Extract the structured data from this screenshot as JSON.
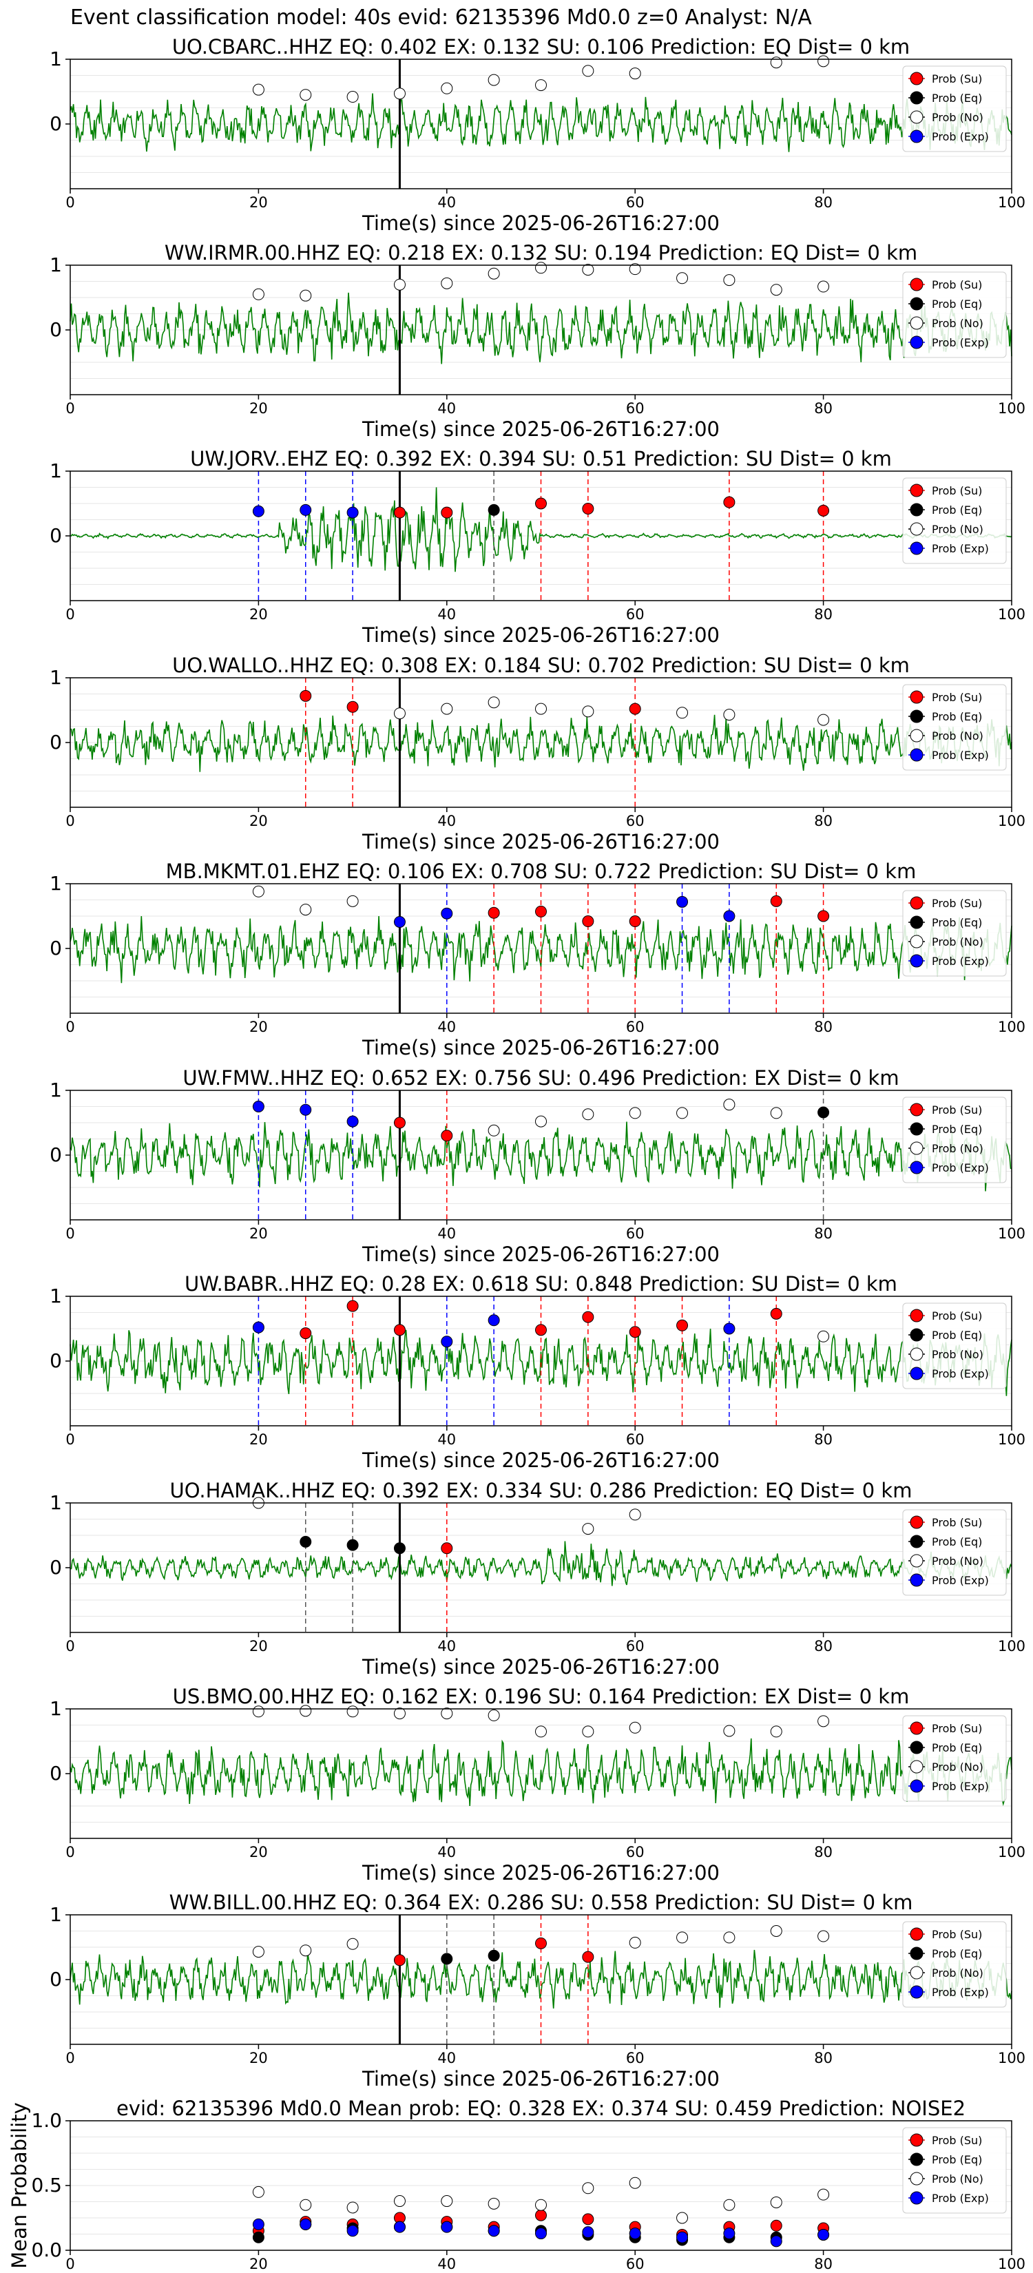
{
  "figure": {
    "title": "Event classification model: 40s evid: 62135396 Md0.0 z=0 Analyst: N/A",
    "xlabel": "Time(s) since 2025-06-26T16:27:00"
  },
  "legend": [
    "Prob (Su)",
    "Prob (Eq)",
    "Prob (No)",
    "Prob (Exp)"
  ],
  "colors": {
    "su": "#ff0000",
    "eq": "#000000",
    "no": "#ffffff",
    "exp": "#0000ff",
    "trace": "#008000"
  },
  "chart_data": [
    {
      "type": "line",
      "title": "UO.CBARC..HHZ   EQ: 0.402  EX: 0.132  SU: 0.106   Prediction: EQ    Dist= 0 km",
      "xlim": [
        0,
        100
      ],
      "ylim": [
        -1,
        1
      ],
      "xticks": [
        0,
        20,
        40,
        60,
        80,
        100
      ],
      "yticks": [
        0,
        1
      ],
      "origin_line": 35,
      "noise": "broad",
      "markers": [
        [
          20,
          "no",
          0.53
        ],
        [
          25,
          "no",
          0.45
        ],
        [
          30,
          "no",
          0.42
        ],
        [
          35,
          "no",
          0.47
        ],
        [
          40,
          "no",
          0.55
        ],
        [
          45,
          "no",
          0.68
        ],
        [
          50,
          "no",
          0.6
        ],
        [
          55,
          "no",
          0.82
        ],
        [
          60,
          "no",
          0.78
        ],
        [
          75,
          "no",
          0.95
        ],
        [
          80,
          "no",
          0.97
        ]
      ],
      "dashed": []
    },
    {
      "type": "line",
      "title": "WW.IRMR.00.HHZ   EQ: 0.218  EX: 0.132  SU: 0.194   Prediction: EQ    Dist= 0 km",
      "xlim": [
        0,
        100
      ],
      "ylim": [
        -1,
        1
      ],
      "xticks": [
        0,
        20,
        40,
        60,
        80,
        100
      ],
      "yticks": [
        0,
        1
      ],
      "origin_line": 35,
      "noise": "wave",
      "markers": [
        [
          20,
          "no",
          0.55
        ],
        [
          25,
          "no",
          0.53
        ],
        [
          35,
          "no",
          0.7
        ],
        [
          40,
          "no",
          0.72
        ],
        [
          45,
          "no",
          0.87
        ],
        [
          50,
          "no",
          0.96
        ],
        [
          55,
          "no",
          0.93
        ],
        [
          60,
          "no",
          0.94
        ],
        [
          65,
          "no",
          0.8
        ],
        [
          70,
          "no",
          0.77
        ],
        [
          75,
          "no",
          0.62
        ],
        [
          80,
          "no",
          0.67
        ]
      ],
      "dashed": []
    },
    {
      "type": "line",
      "title": "UW.JORV..EHZ   EQ: 0.392  EX: 0.394  SU: 0.51   Prediction: SU    Dist= 0 km",
      "xlim": [
        0,
        100
      ],
      "ylim": [
        -1,
        1
      ],
      "xticks": [
        0,
        20,
        40,
        60,
        80,
        100
      ],
      "yticks": [
        0,
        1
      ],
      "origin_line": 35,
      "noise": "burst",
      "markers": [
        [
          20,
          "exp",
          0.38
        ],
        [
          25,
          "exp",
          0.4
        ],
        [
          30,
          "exp",
          0.36
        ],
        [
          35,
          "su",
          0.36
        ],
        [
          40,
          "su",
          0.36
        ],
        [
          45,
          "eq",
          0.4
        ],
        [
          50,
          "su",
          0.5
        ],
        [
          55,
          "su",
          0.42
        ],
        [
          70,
          "su",
          0.52
        ],
        [
          80,
          "su",
          0.39
        ]
      ],
      "dashed": [
        [
          20,
          "exp"
        ],
        [
          25,
          "exp"
        ],
        [
          30,
          "exp"
        ],
        [
          45,
          "eq"
        ],
        [
          50,
          "su"
        ],
        [
          55,
          "su"
        ],
        [
          70,
          "su"
        ],
        [
          80,
          "su"
        ]
      ]
    },
    {
      "type": "line",
      "title": "UO.WALLO..HHZ   EQ: 0.308  EX: 0.184  SU: 0.702   Prediction: SU    Dist= 0 km",
      "xlim": [
        0,
        100
      ],
      "ylim": [
        -1,
        1
      ],
      "xticks": [
        0,
        20,
        40,
        60,
        80,
        100
      ],
      "yticks": [
        0,
        1
      ],
      "origin_line": 35,
      "noise": "broad",
      "markers": [
        [
          25,
          "su",
          0.72
        ],
        [
          30,
          "su",
          0.55
        ],
        [
          35,
          "no",
          0.45
        ],
        [
          40,
          "no",
          0.52
        ],
        [
          45,
          "no",
          0.62
        ],
        [
          50,
          "no",
          0.52
        ],
        [
          55,
          "no",
          0.48
        ],
        [
          60,
          "su",
          0.52
        ],
        [
          65,
          "no",
          0.46
        ],
        [
          70,
          "no",
          0.43
        ],
        [
          80,
          "no",
          0.35
        ]
      ],
      "dashed": [
        [
          25,
          "su"
        ],
        [
          30,
          "su"
        ],
        [
          60,
          "su"
        ]
      ]
    },
    {
      "type": "line",
      "title": "MB.MKMT.01.EHZ   EQ: 0.106  EX: 0.708  SU: 0.722   Prediction: SU    Dist= 0 km",
      "xlim": [
        0,
        100
      ],
      "ylim": [
        -1,
        1
      ],
      "xticks": [
        0,
        20,
        40,
        60,
        80,
        100
      ],
      "yticks": [
        0,
        1
      ],
      "origin_line": 35,
      "noise": "wave",
      "markers": [
        [
          20,
          "no",
          0.88
        ],
        [
          25,
          "no",
          0.6
        ],
        [
          30,
          "no",
          0.73
        ],
        [
          35,
          "exp",
          0.41
        ],
        [
          40,
          "exp",
          0.54
        ],
        [
          45,
          "su",
          0.55
        ],
        [
          50,
          "su",
          0.57
        ],
        [
          55,
          "su",
          0.42
        ],
        [
          60,
          "su",
          0.42
        ],
        [
          65,
          "exp",
          0.72
        ],
        [
          70,
          "exp",
          0.5
        ],
        [
          75,
          "su",
          0.73
        ],
        [
          80,
          "su",
          0.5
        ]
      ],
      "dashed": [
        [
          40,
          "exp"
        ],
        [
          45,
          "su"
        ],
        [
          50,
          "su"
        ],
        [
          55,
          "su"
        ],
        [
          60,
          "su"
        ],
        [
          65,
          "exp"
        ],
        [
          70,
          "exp"
        ],
        [
          75,
          "su"
        ],
        [
          80,
          "su"
        ]
      ]
    },
    {
      "type": "line",
      "title": "UW.FMW..HHZ   EQ: 0.652  EX: 0.756  SU: 0.496   Prediction: EX    Dist= 0 km",
      "xlim": [
        0,
        100
      ],
      "ylim": [
        -1,
        1
      ],
      "xticks": [
        0,
        20,
        40,
        60,
        80,
        100
      ],
      "yticks": [
        0,
        1
      ],
      "origin_line": 35,
      "noise": "wave",
      "markers": [
        [
          20,
          "exp",
          0.75
        ],
        [
          25,
          "exp",
          0.7
        ],
        [
          30,
          "exp",
          0.52
        ],
        [
          35,
          "su",
          0.5
        ],
        [
          40,
          "su",
          0.3
        ],
        [
          45,
          "no",
          0.38
        ],
        [
          50,
          "no",
          0.52
        ],
        [
          55,
          "no",
          0.63
        ],
        [
          60,
          "no",
          0.65
        ],
        [
          65,
          "no",
          0.65
        ],
        [
          70,
          "no",
          0.78
        ],
        [
          75,
          "no",
          0.65
        ],
        [
          80,
          "eq",
          0.66
        ]
      ],
      "dashed": [
        [
          20,
          "exp"
        ],
        [
          25,
          "exp"
        ],
        [
          30,
          "exp"
        ],
        [
          40,
          "su"
        ],
        [
          80,
          "eq"
        ]
      ]
    },
    {
      "type": "line",
      "title": "UW.BABR..HHZ   EQ: 0.28  EX: 0.618  SU: 0.848   Prediction: SU    Dist= 0 km",
      "xlim": [
        0,
        100
      ],
      "ylim": [
        -1,
        1
      ],
      "xticks": [
        0,
        20,
        40,
        60,
        80,
        100
      ],
      "yticks": [
        0,
        1
      ],
      "origin_line": 35,
      "noise": "wave",
      "markers": [
        [
          20,
          "exp",
          0.52
        ],
        [
          25,
          "su",
          0.43
        ],
        [
          30,
          "su",
          0.85
        ],
        [
          35,
          "su",
          0.48
        ],
        [
          40,
          "exp",
          0.3
        ],
        [
          45,
          "exp",
          0.63
        ],
        [
          50,
          "su",
          0.48
        ],
        [
          55,
          "su",
          0.68
        ],
        [
          60,
          "su",
          0.45
        ],
        [
          65,
          "su",
          0.55
        ],
        [
          70,
          "exp",
          0.5
        ],
        [
          75,
          "su",
          0.73
        ],
        [
          80,
          "no",
          0.38
        ]
      ],
      "dashed": [
        [
          20,
          "exp"
        ],
        [
          25,
          "su"
        ],
        [
          30,
          "su"
        ],
        [
          40,
          "exp"
        ],
        [
          45,
          "exp"
        ],
        [
          50,
          "su"
        ],
        [
          55,
          "su"
        ],
        [
          60,
          "su"
        ],
        [
          65,
          "su"
        ],
        [
          70,
          "exp"
        ],
        [
          75,
          "su"
        ]
      ]
    },
    {
      "type": "line",
      "title": "UO.HAMAK..HHZ   EQ: 0.392  EX: 0.334  SU: 0.286   Prediction: EQ    Dist= 0 km",
      "xlim": [
        0,
        100
      ],
      "ylim": [
        -1,
        1
      ],
      "xticks": [
        0,
        20,
        40,
        60,
        80,
        100
      ],
      "yticks": [
        0,
        1
      ],
      "origin_line": 35,
      "noise": "quiet",
      "markers": [
        [
          20,
          "no",
          1.0
        ],
        [
          25,
          "eq",
          0.4
        ],
        [
          30,
          "eq",
          0.35
        ],
        [
          35,
          "eq",
          0.3
        ],
        [
          40,
          "su",
          0.3
        ],
        [
          55,
          "no",
          0.6
        ],
        [
          60,
          "no",
          0.82
        ]
      ],
      "dashed": [
        [
          25,
          "eq"
        ],
        [
          30,
          "eq"
        ],
        [
          40,
          "su"
        ]
      ]
    },
    {
      "type": "line",
      "title": "US.BMO.00.HHZ   EQ: 0.162  EX: 0.196  SU: 0.164   Prediction: EX    Dist= 0 km",
      "xlim": [
        0,
        100
      ],
      "ylim": [
        -1,
        1
      ],
      "xticks": [
        0,
        20,
        40,
        60,
        80,
        100
      ],
      "yticks": [
        0,
        1
      ],
      "origin_line": 0,
      "noise": "wave",
      "markers": [
        [
          20,
          "no",
          0.96
        ],
        [
          25,
          "no",
          0.97
        ],
        [
          30,
          "no",
          0.96
        ],
        [
          35,
          "no",
          0.93
        ],
        [
          40,
          "no",
          0.93
        ],
        [
          45,
          "no",
          0.9
        ],
        [
          50,
          "no",
          0.65
        ],
        [
          55,
          "no",
          0.65
        ],
        [
          60,
          "no",
          0.71
        ],
        [
          70,
          "no",
          0.66
        ],
        [
          75,
          "no",
          0.65
        ],
        [
          80,
          "no",
          0.81
        ]
      ],
      "dashed": []
    },
    {
      "type": "line",
      "title": "WW.BILL.00.HHZ   EQ: 0.364  EX: 0.286  SU: 0.558   Prediction: SU    Dist= 0 km",
      "xlim": [
        0,
        100
      ],
      "ylim": [
        -1,
        1
      ],
      "xticks": [
        0,
        20,
        40,
        60,
        80,
        100
      ],
      "yticks": [
        0,
        1
      ],
      "origin_line": 35,
      "noise": "broad",
      "markers": [
        [
          20,
          "no",
          0.43
        ],
        [
          25,
          "no",
          0.45
        ],
        [
          30,
          "no",
          0.55
        ],
        [
          35,
          "su",
          0.3
        ],
        [
          40,
          "eq",
          0.32
        ],
        [
          45,
          "eq",
          0.37
        ],
        [
          50,
          "su",
          0.56
        ],
        [
          55,
          "su",
          0.35
        ],
        [
          60,
          "no",
          0.57
        ],
        [
          65,
          "no",
          0.65
        ],
        [
          70,
          "no",
          0.65
        ],
        [
          75,
          "no",
          0.75
        ],
        [
          80,
          "no",
          0.67
        ]
      ],
      "dashed": [
        [
          40,
          "eq"
        ],
        [
          45,
          "eq"
        ],
        [
          50,
          "su"
        ],
        [
          55,
          "su"
        ]
      ]
    },
    {
      "type": "scatter",
      "title": "evid: 62135396   Md0.0    Mean prob:   EQ: 0.328   EX: 0.374   SU: 0.459   Prediction: NOISE2",
      "xlabel": "",
      "ylabel": "Mean Probability",
      "xlim": [
        0,
        100
      ],
      "ylim": [
        0,
        1
      ],
      "xticks": [
        0,
        20,
        40,
        60,
        80,
        100
      ],
      "yticks": [
        0.0,
        0.5,
        1.0
      ],
      "series": [
        {
          "name": "Prob (Su)",
          "key": "su",
          "points": [
            [
              20,
              0.15
            ],
            [
              25,
              0.22
            ],
            [
              30,
              0.2
            ],
            [
              35,
              0.25
            ],
            [
              40,
              0.22
            ],
            [
              45,
              0.18
            ],
            [
              50,
              0.27
            ],
            [
              55,
              0.24
            ],
            [
              60,
              0.18
            ],
            [
              65,
              0.12
            ],
            [
              70,
              0.18
            ],
            [
              75,
              0.19
            ],
            [
              80,
              0.17
            ]
          ]
        },
        {
          "name": "Prob (Eq)",
          "key": "eq",
          "points": [
            [
              20,
              0.1
            ],
            [
              25,
              0.2
            ],
            [
              30,
              0.17
            ],
            [
              35,
              0.18
            ],
            [
              40,
              0.18
            ],
            [
              45,
              0.15
            ],
            [
              50,
              0.15
            ],
            [
              55,
              0.12
            ],
            [
              60,
              0.1
            ],
            [
              65,
              0.08
            ],
            [
              70,
              0.1
            ],
            [
              75,
              0.1
            ],
            [
              80,
              0.12
            ]
          ]
        },
        {
          "name": "Prob (No)",
          "key": "no",
          "points": [
            [
              20,
              0.45
            ],
            [
              25,
              0.35
            ],
            [
              30,
              0.33
            ],
            [
              35,
              0.38
            ],
            [
              40,
              0.38
            ],
            [
              45,
              0.36
            ],
            [
              50,
              0.35
            ],
            [
              55,
              0.48
            ],
            [
              60,
              0.52
            ],
            [
              65,
              0.25
            ],
            [
              70,
              0.35
            ],
            [
              75,
              0.37
            ],
            [
              80,
              0.43
            ]
          ]
        },
        {
          "name": "Prob (Exp)",
          "key": "exp",
          "points": [
            [
              20,
              0.2
            ],
            [
              25,
              0.2
            ],
            [
              30,
              0.15
            ],
            [
              35,
              0.18
            ],
            [
              40,
              0.18
            ],
            [
              45,
              0.15
            ],
            [
              50,
              0.13
            ],
            [
              55,
              0.14
            ],
            [
              60,
              0.13
            ],
            [
              65,
              0.1
            ],
            [
              70,
              0.13
            ],
            [
              75,
              0.07
            ],
            [
              80,
              0.12
            ]
          ]
        }
      ]
    }
  ]
}
